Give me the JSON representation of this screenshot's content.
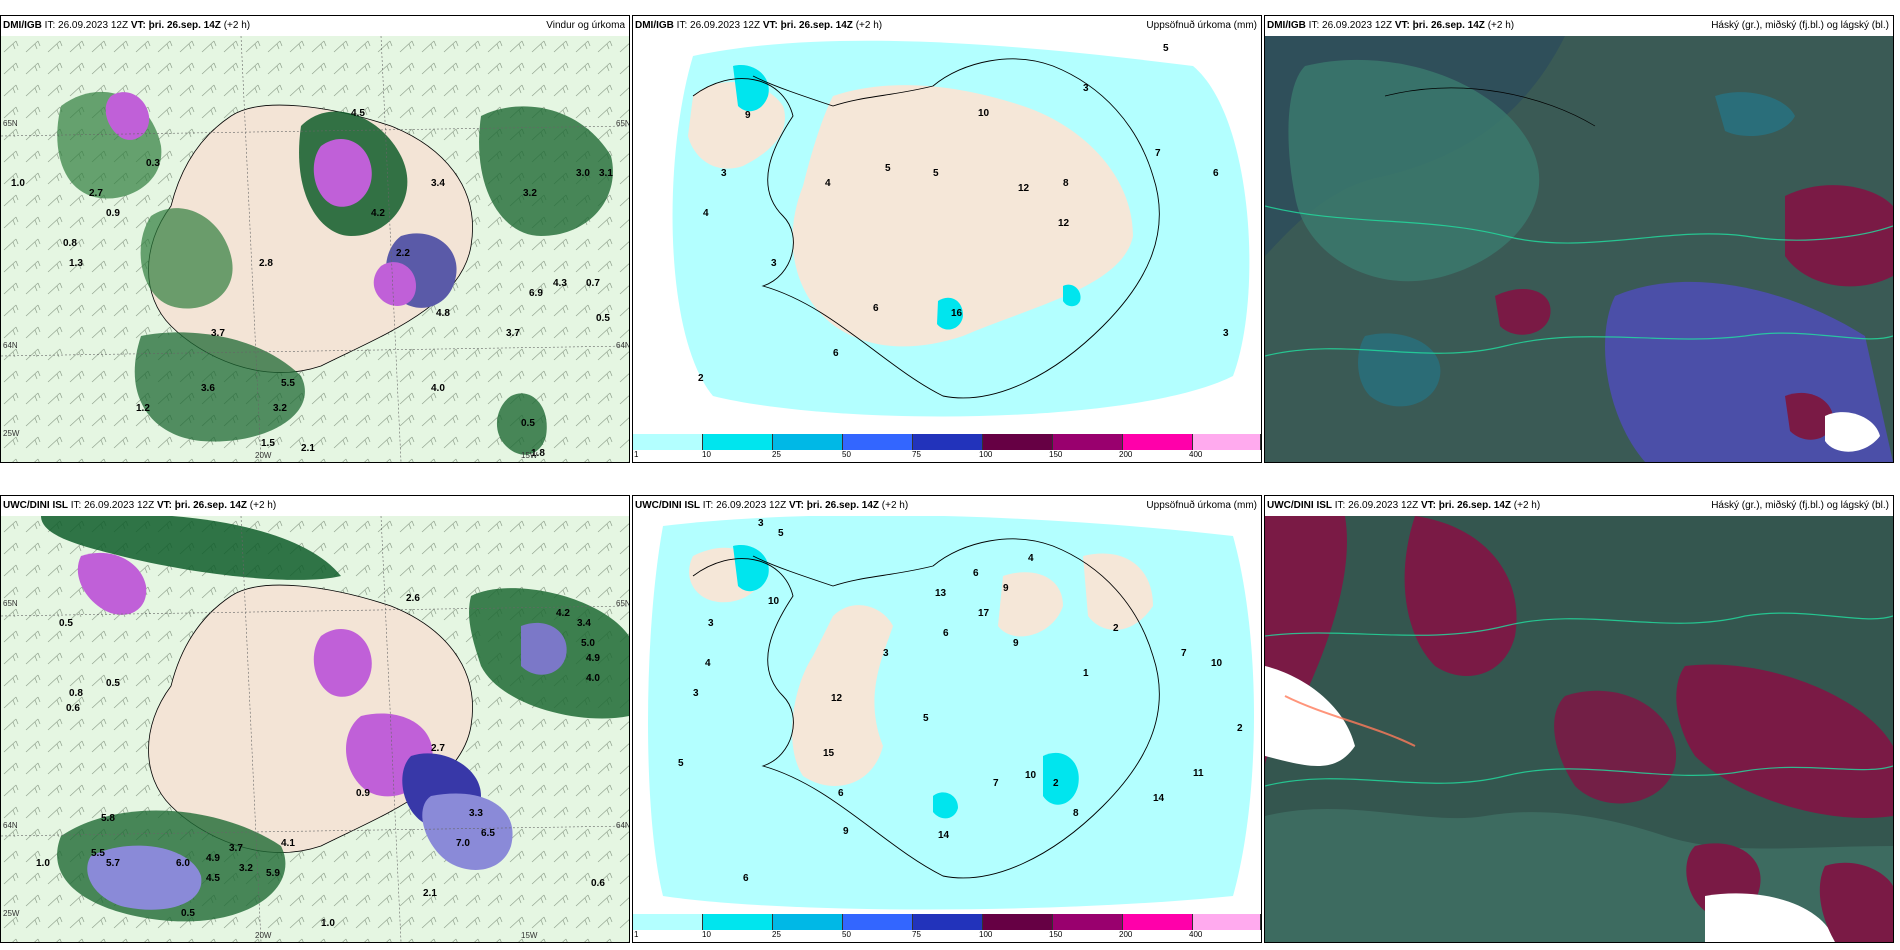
{
  "panels": [
    {
      "model": "DMI/IGB",
      "it": "IT: 26.09.2023 12Z",
      "vt_label": "VT:",
      "vt": "þri. 26.sep. 14Z",
      "lead": "(+2 h)",
      "title": "Vindur og úrkoma",
      "axis_labels": [
        "65N",
        "64N",
        "25W",
        "20W",
        "15W",
        "65N",
        "64N"
      ]
    },
    {
      "model": "DMI/IGB",
      "it": "IT: 26.09.2023 12Z",
      "vt_label": "VT:",
      "vt": "þri. 26.sep. 14Z",
      "lead": "(+2 h)",
      "title": "Uppsöfnuð úrkoma (mm)"
    },
    {
      "model": "DMI/IGB",
      "it": "IT: 26.09.2023 12Z",
      "vt_label": "VT:",
      "vt": "þri. 26.sep. 14Z",
      "lead": "(+2 h)",
      "title": "Háský (gr.), miðský (fj.bl.) og lágský (bl.)"
    },
    {
      "model": "UWC/DINI ISL",
      "it": "IT: 26.09.2023 12Z",
      "vt_label": "VT:",
      "vt": "þri. 26.sep. 14Z",
      "lead": "(+2 h)",
      "title": "",
      "axis_labels": [
        "65N",
        "64N",
        "25W",
        "20W",
        "15W",
        "65N",
        "64N"
      ]
    },
    {
      "model": "UWC/DINI ISL",
      "it": "IT: 26.09.2023 12Z",
      "vt_label": "VT:",
      "vt": "þri. 26.sep. 14Z",
      "lead": "(+2 h)",
      "title": "Uppsöfnuð úrkoma (mm)"
    },
    {
      "model": "UWC/DINI ISL",
      "it": "IT: 26.09.2023 12Z",
      "vt_label": "VT:",
      "vt": "þri. 26.sep. 14Z",
      "lead": "(+2 h)",
      "title": "Háský (gr.), miðský (fj.bl.) og lágský (bl.)"
    }
  ],
  "precip_colorbar": {
    "ticks": [
      "1",
      "10",
      "25",
      "50",
      "75",
      "100",
      "150",
      "200",
      "400"
    ],
    "colors": [
      "#b3ffff",
      "#00e5ee",
      "#00b8e6",
      "#3366ff",
      "#2233bb",
      "#660044",
      "#99006e",
      "#ff00aa",
      "#ffaaee"
    ]
  },
  "values": {
    "p1": [
      "1.0",
      "0.3",
      "0.8",
      "0.9",
      "1.3",
      "2.7",
      "3.4",
      "4.5",
      "4.2",
      "3.0",
      "3.1",
      "3.2",
      "6.9",
      "4.3",
      "2.2",
      "3.7",
      "3.6",
      "4.0",
      "5.5",
      "3.2",
      "2.1",
      "1.5",
      "1.2",
      "0.7",
      "3.7",
      "0.5",
      "0.5",
      "1.8",
      "4.8",
      "2.8"
    ],
    "p2": [
      "3",
      "5",
      "9",
      "3",
      "4",
      "4",
      "6",
      "5",
      "10",
      "12",
      "8",
      "3",
      "7",
      "5",
      "6",
      "16",
      "6",
      "12",
      "2",
      "3"
    ],
    "p4": [
      "0.5",
      "0.8",
      "0.5",
      "0.6",
      "4.2",
      "3.4",
      "5.0",
      "4.9",
      "4.0",
      "2.6",
      "5.8",
      "5.5",
      "5.7",
      "6.0",
      "4.9",
      "4.5",
      "3.2",
      "5.9",
      "3.7",
      "1.0",
      "0.5",
      "2.1",
      "0.6",
      "1.0",
      "6.5",
      "7.0",
      "4.1",
      "2.7",
      "3.3",
      "0.9"
    ],
    "p5": [
      "3",
      "4",
      "5",
      "3",
      "6",
      "13",
      "10",
      "9",
      "6",
      "3",
      "5",
      "7",
      "2",
      "8",
      "10",
      "14",
      "17",
      "14",
      "12",
      "15",
      "9",
      "6",
      "1",
      "2",
      "11",
      "2",
      "5",
      "3",
      "4",
      "6",
      "10",
      "7",
      "9"
    ]
  }
}
